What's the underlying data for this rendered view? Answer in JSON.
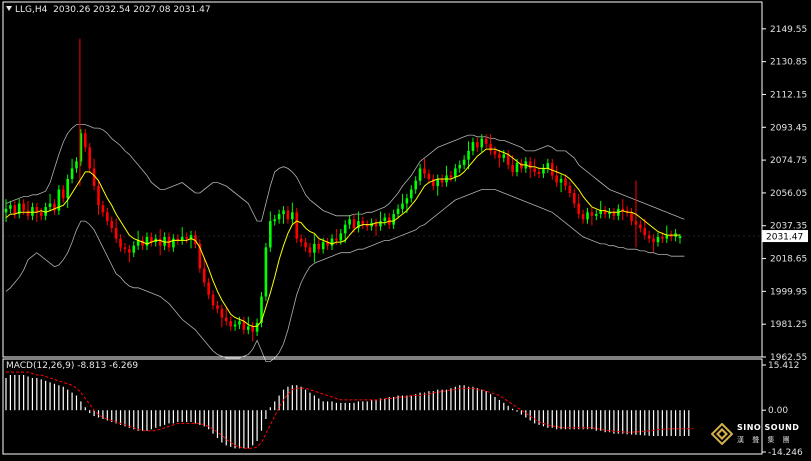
{
  "main_header": {
    "symbol": "LLG,H4",
    "ohlc": "2030.26 2032.54 2027.08 2031.47"
  },
  "macd_header": {
    "label": "MACD(12,26,9) -8.813 -6.269"
  },
  "logo": {
    "name": "SINO SOUND",
    "subtitle": "漢 聲 集 團"
  },
  "colors": {
    "background": "#000000",
    "bull_candle": "#00ff00",
    "bear_candle": "#ff0000",
    "bollinger": "#b0b0b0",
    "moving_average": "#ffff00",
    "macd_histogram": "#ffffff",
    "macd_signal": "#ff0000",
    "axis": "#ffffff",
    "price_tag_bg": "#ffffff"
  },
  "chart_data": [
    {
      "type": "candlestick",
      "symbol": "LLG",
      "timeframe": "H4",
      "ylim": [
        1962.55,
        2158.0
      ],
      "y_ticks": [
        "2149.55",
        "2130.85",
        "2112.15",
        "2093.45",
        "2074.75",
        "2056.05",
        "2037.35",
        "2018.65",
        "1999.95",
        "1981.25",
        "1962.55"
      ],
      "current_price": "2031.47",
      "last_bar": {
        "open": 2030.26,
        "high": 2032.54,
        "low": 2027.08,
        "close": 2031.47
      },
      "close": [
        2047,
        2049,
        2044,
        2050,
        2046,
        2043,
        2048,
        2045,
        2043,
        2048,
        2050,
        2046,
        2058,
        2053,
        2064,
        2070,
        2074,
        2090,
        2082,
        2070,
        2060,
        2049,
        2045,
        2040,
        2036,
        2030,
        2025,
        2024,
        2022,
        2026,
        2029,
        2026,
        2031,
        2028,
        2030,
        2026,
        2031,
        2025,
        2030,
        2029,
        2031,
        2030,
        2032,
        2027,
        2013,
        2005,
        1998,
        1992,
        1990,
        1985,
        1983,
        1980,
        1981,
        1983,
        1978,
        1980,
        1977,
        1982,
        1997,
        2025,
        2040,
        2041,
        2044,
        2046,
        2041,
        2045,
        2030,
        2028,
        2025,
        2022,
        2027,
        2024,
        2028,
        2026,
        2030,
        2029,
        2033,
        2038,
        2041,
        2036,
        2040,
        2038,
        2037,
        2039,
        2037,
        2040,
        2042,
        2038,
        2044,
        2047,
        2050,
        2053,
        2058,
        2063,
        2070,
        2067,
        2064,
        2060,
        2064,
        2062,
        2066,
        2065,
        2070,
        2072,
        2075,
        2080,
        2085,
        2082,
        2087,
        2084,
        2080,
        2078,
        2076,
        2078,
        2072,
        2068,
        2073,
        2070,
        2074,
        2070,
        2068,
        2067,
        2070,
        2073,
        2066,
        2062,
        2064,
        2060,
        2056,
        2050,
        2044,
        2041,
        2045,
        2043,
        2044,
        2046,
        2044,
        2045,
        2043,
        2047,
        2046,
        2045,
        2040,
        2038,
        2036,
        2032,
        2030,
        2028,
        2031,
        2030,
        2032,
        2031,
        2033,
        2031.47
      ],
      "moving_average": [
        2042,
        2044,
        2044,
        2045,
        2045,
        2045,
        2045,
        2045,
        2046,
        2045,
        2046,
        2047,
        2048,
        2049,
        2052,
        2056,
        2060,
        2064,
        2068,
        2068,
        2066,
        2063,
        2058,
        2053,
        2049,
        2044,
        2040,
        2036,
        2032,
        2030,
        2029,
        2028,
        2027,
        2028,
        2029,
        2029,
        2028,
        2028,
        2029,
        2029,
        2029,
        2029,
        2030,
        2029,
        2025,
        2019,
        2013,
        2006,
        2000,
        1995,
        1991,
        1987,
        1985,
        1984,
        1983,
        1981,
        1980,
        1980,
        1983,
        1991,
        1999,
        2008,
        2018,
        2026,
        2033,
        2038,
        2040,
        2039,
        2036,
        2034,
        2033,
        2030,
        2029,
        2028,
        2027,
        2028,
        2028,
        2029,
        2032,
        2035,
        2037,
        2038,
        2038,
        2038,
        2039,
        2039,
        2039,
        2040,
        2040,
        2042,
        2044,
        2046,
        2049,
        2052,
        2056,
        2060,
        2062,
        2063,
        2064,
        2064,
        2064,
        2064,
        2065,
        2066,
        2068,
        2071,
        2074,
        2077,
        2079,
        2081,
        2081,
        2081,
        2080,
        2079,
        2078,
        2076,
        2074,
        2072,
        2072,
        2071,
        2071,
        2070,
        2070,
        2070,
        2069,
        2068,
        2067,
        2066,
        2064,
        2061,
        2058,
        2054,
        2051,
        2048,
        2047,
        2046,
        2046,
        2045,
        2045,
        2045,
        2046,
        2045,
        2045,
        2044,
        2042,
        2040,
        2038,
        2036,
        2034,
        2033,
        2032,
        2032,
        2032,
        2032
      ],
      "bollinger_upper": [
        2050,
        2051,
        2052,
        2053,
        2054,
        2054,
        2055,
        2055,
        2056,
        2057,
        2062,
        2070,
        2078,
        2085,
        2090,
        2093,
        2095,
        2095,
        2095,
        2094,
        2093,
        2093,
        2092,
        2090,
        2087,
        2085,
        2083,
        2080,
        2078,
        2075,
        2072,
        2069,
        2066,
        2062,
        2060,
        2058,
        2058,
        2059,
        2060,
        2061,
        2062,
        2060,
        2058,
        2056,
        2056,
        2058,
        2060,
        2062,
        2062,
        2061,
        2060,
        2058,
        2056,
        2054,
        2052,
        2050,
        2045,
        2040,
        2040,
        2050,
        2060,
        2068,
        2070,
        2071,
        2070,
        2068,
        2065,
        2060,
        2055,
        2052,
        2050,
        2048,
        2046,
        2045,
        2044,
        2043,
        2043,
        2043,
        2043,
        2044,
        2044,
        2044,
        2045,
        2045,
        2046,
        2047,
        2048,
        2050,
        2053,
        2056,
        2060,
        2063,
        2066,
        2070,
        2074,
        2076,
        2078,
        2080,
        2082,
        2083,
        2084,
        2085,
        2086,
        2087,
        2088,
        2089,
        2089,
        2088,
        2088,
        2088,
        2087,
        2087,
        2086,
        2086,
        2085,
        2084,
        2083,
        2082,
        2080,
        2080,
        2080,
        2081,
        2082,
        2083,
        2082,
        2080,
        2080,
        2080,
        2078,
        2076,
        2072,
        2070,
        2068,
        2066,
        2064,
        2062,
        2060,
        2058,
        2057,
        2056,
        2055,
        2054,
        2053,
        2052,
        2051,
        2050,
        2049,
        2048,
        2047,
        2046,
        2045,
        2044,
        2043,
        2042,
        2041
      ],
      "bollinger_lower": [
        2000,
        2002,
        2005,
        2008,
        2012,
        2018,
        2020,
        2022,
        2020,
        2018,
        2016,
        2014,
        2015,
        2018,
        2022,
        2028,
        2035,
        2040,
        2040,
        2038,
        2035,
        2030,
        2025,
        2020,
        2015,
        2010,
        2008,
        2005,
        2003,
        2002,
        2002,
        2001,
        2000,
        1999,
        1998,
        1997,
        1995,
        1993,
        1990,
        1987,
        1984,
        1982,
        1980,
        1978,
        1975,
        1972,
        1969,
        1966,
        1964,
        1963,
        1962,
        1962,
        1962,
        1962,
        1963,
        1964,
        1967,
        1972,
        1966,
        1960,
        1960,
        1962,
        1965,
        1970,
        1978,
        1988,
        1998,
        2005,
        2010,
        2014,
        2016,
        2017,
        2018,
        2019,
        2020,
        2021,
        2022,
        2022,
        2022,
        2023,
        2024,
        2024,
        2025,
        2026,
        2027,
        2028,
        2029,
        2029,
        2030,
        2031,
        2032,
        2033,
        2034,
        2035,
        2037,
        2038,
        2040,
        2042,
        2044,
        2046,
        2048,
        2050,
        2052,
        2053,
        2054,
        2055,
        2056,
        2057,
        2058,
        2058,
        2058,
        2058,
        2057,
        2056,
        2055,
        2054,
        2053,
        2052,
        2051,
        2050,
        2049,
        2048,
        2047,
        2046,
        2045,
        2043,
        2041,
        2039,
        2037,
        2035,
        2033,
        2031,
        2030,
        2029,
        2028,
        2027,
        2027,
        2026,
        2026,
        2025,
        2025,
        2024,
        2024,
        2024,
        2023,
        2023,
        2022,
        2022,
        2021,
        2021,
        2021,
        2020,
        2020,
        2020,
        2020
      ]
    },
    {
      "type": "macd",
      "params": "12,26,9",
      "macd": -8.813,
      "signal": -6.269,
      "ylim": [
        -14.246,
        15.412
      ],
      "y_ticks": [
        "15.412",
        "0.00",
        "-14.246"
      ],
      "histogram": [
        11,
        12,
        12,
        12,
        12,
        11.5,
        11,
        11,
        10.5,
        10,
        9.5,
        9,
        8.5,
        8,
        7,
        6,
        5,
        3,
        1,
        -1,
        -2,
        -2.5,
        -3,
        -3.5,
        -4,
        -4.5,
        -5,
        -5.5,
        -6,
        -6.5,
        -7,
        -7,
        -7,
        -6.5,
        -6,
        -5.5,
        -5,
        -4.5,
        -4.5,
        -4,
        -4,
        -4,
        -4,
        -4.5,
        -5,
        -5.5,
        -6.5,
        -8,
        -9.5,
        -11,
        -12,
        -12.5,
        -13,
        -13,
        -13,
        -13,
        -12,
        -10.5,
        -7,
        -3,
        1,
        3,
        5,
        7,
        8,
        8.5,
        8.5,
        8,
        7,
        6,
        5,
        4,
        3,
        3,
        3,
        2.5,
        2.5,
        2.5,
        2.5,
        2.5,
        3,
        3,
        3,
        3.5,
        3.5,
        4,
        4,
        4.5,
        4.5,
        5,
        5,
        5,
        5,
        5.5,
        6,
        6,
        6.5,
        6.5,
        7,
        7,
        7,
        7.5,
        8,
        8.5,
        8.5,
        8,
        8,
        7.5,
        7,
        6.5,
        5.5,
        4.5,
        3.5,
        2.5,
        1.5,
        0.5,
        -0.5,
        -1.5,
        -2.5,
        -3.5,
        -4.5,
        -5,
        -5.5,
        -6,
        -6,
        -6.5,
        -6.5,
        -6.5,
        -6.5,
        -6.5,
        -6.5,
        -6.5,
        -6.5,
        -6.5,
        -7,
        -7,
        -7.5,
        -7.5,
        -8,
        -8,
        -8,
        -8.2,
        -8.3,
        -8.4,
        -8.5,
        -8.6,
        -8.7,
        -8.8,
        -8.8,
        -8.8,
        -8.8,
        -8.8,
        -8.8,
        -8.8,
        -8.8,
        -8.8
      ],
      "signal_line": [
        13,
        13,
        13,
        13,
        13,
        13,
        12.5,
        12,
        12,
        11.5,
        11,
        10.5,
        10,
        9.5,
        9,
        8.5,
        7.5,
        6,
        4,
        2,
        0,
        -1.5,
        -2.5,
        -3,
        -3.5,
        -4,
        -4.5,
        -5,
        -5.5,
        -6,
        -6.5,
        -7,
        -7,
        -7,
        -7,
        -6.5,
        -6,
        -5.5,
        -5,
        -4.5,
        -4.5,
        -4.5,
        -4.5,
        -4.5,
        -4.5,
        -5,
        -5.5,
        -6.5,
        -7.5,
        -8.5,
        -10,
        -11,
        -12,
        -12.5,
        -13,
        -13,
        -13,
        -12.5,
        -11,
        -8,
        -5,
        -2,
        1,
        3.5,
        5.5,
        7,
        7.5,
        7.5,
        7.5,
        7,
        6.5,
        6,
        5.5,
        5,
        4.5,
        4,
        3.5,
        3.5,
        3.5,
        3.5,
        3.5,
        3.5,
        3.5,
        3.5,
        3.5,
        3.5,
        4,
        4,
        4,
        4.5,
        4.5,
        4.5,
        5,
        5,
        5,
        5.5,
        5.5,
        6,
        6,
        6.5,
        6.5,
        7,
        7,
        7.5,
        7.5,
        7.5,
        7.5,
        7,
        7,
        6.5,
        6,
        5.5,
        5,
        4,
        3,
        2,
        1,
        0,
        -1,
        -2,
        -3,
        -4,
        -4.5,
        -5,
        -5.5,
        -5.5,
        -6,
        -6,
        -6,
        -6,
        -6,
        -6,
        -6,
        -6,
        -6.2,
        -6.5,
        -6.8,
        -7,
        -7.2,
        -7.3,
        -7.4,
        -7.5,
        -7.5,
        -7.4,
        -7.3,
        -7.2,
        -7,
        -6.8,
        -6.6,
        -6.5,
        -6.4,
        -6.3,
        -6.3,
        -6.3,
        -6.3,
        -6.3,
        -6.269
      ]
    }
  ]
}
